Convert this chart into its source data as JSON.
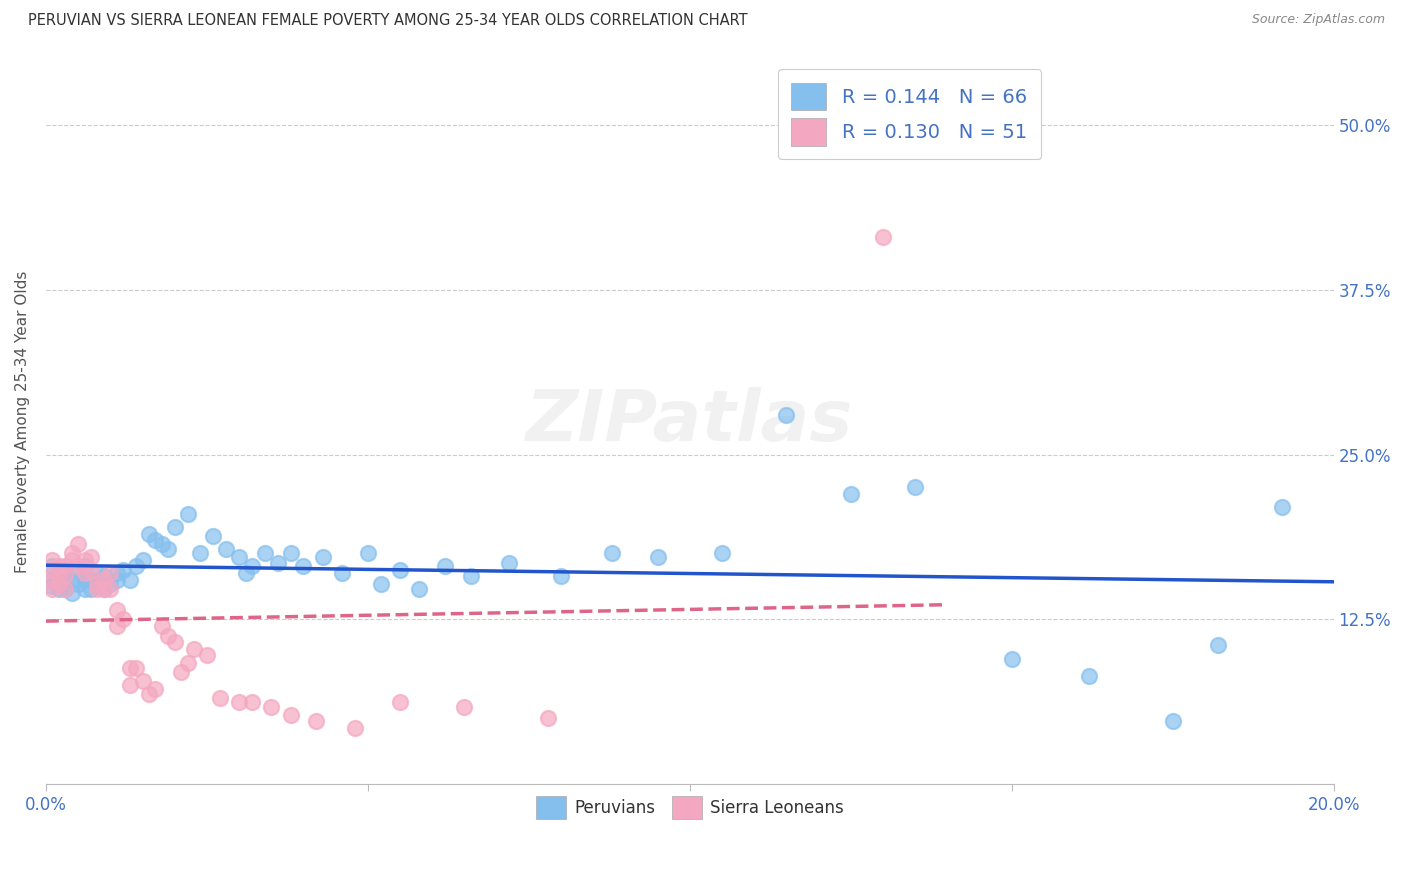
{
  "title": "PERUVIAN VS SIERRA LEONEAN FEMALE POVERTY AMONG 25-34 YEAR OLDS CORRELATION CHART",
  "source": "Source: ZipAtlas.com",
  "ylabel": "Female Poverty Among 25-34 Year Olds",
  "xlim": [
    0.0,
    0.2
  ],
  "ylim": [
    0.0,
    0.55
  ],
  "xticks": [
    0.0,
    0.05,
    0.1,
    0.15,
    0.2
  ],
  "xticklabels": [
    "0.0%",
    "",
    "",
    "",
    "20.0%"
  ],
  "yticks": [
    0.0,
    0.125,
    0.25,
    0.375,
    0.5
  ],
  "yticklabels": [
    "",
    "12.5%",
    "25.0%",
    "37.5%",
    "50.0%"
  ],
  "peruvian_color": "#85BFEE",
  "sierra_color": "#F4A7C0",
  "peruvian_line_color": "#2255CC",
  "sierra_line_color": "#DD6688",
  "peruvian_x": [
    0.001,
    0.001,
    0.001,
    0.002,
    0.002,
    0.002,
    0.003,
    0.003,
    0.003,
    0.004,
    0.004,
    0.005,
    0.005,
    0.006,
    0.006,
    0.006,
    0.007,
    0.007,
    0.008,
    0.008,
    0.009,
    0.009,
    0.01,
    0.011,
    0.011,
    0.012,
    0.013,
    0.014,
    0.015,
    0.016,
    0.017,
    0.018,
    0.019,
    0.02,
    0.022,
    0.024,
    0.026,
    0.028,
    0.03,
    0.031,
    0.032,
    0.034,
    0.036,
    0.038,
    0.04,
    0.043,
    0.046,
    0.05,
    0.052,
    0.055,
    0.058,
    0.062,
    0.066,
    0.072,
    0.08,
    0.088,
    0.095,
    0.105,
    0.115,
    0.125,
    0.135,
    0.15,
    0.162,
    0.175,
    0.182,
    0.192
  ],
  "peruvian_y": [
    0.155,
    0.165,
    0.15,
    0.16,
    0.148,
    0.155,
    0.148,
    0.158,
    0.162,
    0.155,
    0.145,
    0.152,
    0.162,
    0.148,
    0.155,
    0.165,
    0.155,
    0.148,
    0.15,
    0.16,
    0.148,
    0.158,
    0.152,
    0.16,
    0.155,
    0.162,
    0.155,
    0.165,
    0.17,
    0.19,
    0.185,
    0.182,
    0.178,
    0.195,
    0.205,
    0.175,
    0.188,
    0.178,
    0.172,
    0.16,
    0.165,
    0.175,
    0.168,
    0.175,
    0.165,
    0.172,
    0.16,
    0.175,
    0.152,
    0.162,
    0.148,
    0.165,
    0.158,
    0.168,
    0.158,
    0.175,
    0.172,
    0.175,
    0.28,
    0.22,
    0.225,
    0.095,
    0.082,
    0.048,
    0.105,
    0.21
  ],
  "sierra_x": [
    0.001,
    0.001,
    0.001,
    0.001,
    0.002,
    0.002,
    0.002,
    0.003,
    0.003,
    0.003,
    0.004,
    0.004,
    0.005,
    0.005,
    0.006,
    0.006,
    0.007,
    0.007,
    0.008,
    0.008,
    0.009,
    0.009,
    0.01,
    0.01,
    0.011,
    0.011,
    0.012,
    0.013,
    0.013,
    0.014,
    0.015,
    0.016,
    0.017,
    0.018,
    0.019,
    0.02,
    0.021,
    0.022,
    0.023,
    0.025,
    0.027,
    0.03,
    0.032,
    0.035,
    0.038,
    0.042,
    0.048,
    0.055,
    0.065,
    0.078,
    0.13
  ],
  "sierra_y": [
    0.155,
    0.148,
    0.162,
    0.17,
    0.165,
    0.158,
    0.152,
    0.165,
    0.158,
    0.148,
    0.17,
    0.175,
    0.182,
    0.165,
    0.16,
    0.17,
    0.172,
    0.162,
    0.152,
    0.148,
    0.148,
    0.155,
    0.148,
    0.16,
    0.12,
    0.132,
    0.125,
    0.088,
    0.075,
    0.088,
    0.078,
    0.068,
    0.072,
    0.12,
    0.112,
    0.108,
    0.085,
    0.092,
    0.102,
    0.098,
    0.065,
    0.062,
    0.062,
    0.058,
    0.052,
    0.048,
    0.042,
    0.062,
    0.058,
    0.05,
    0.415
  ],
  "watermark": "ZIPatlas",
  "background_color": "#FFFFFF",
  "grid_color": "#CCCCCC"
}
